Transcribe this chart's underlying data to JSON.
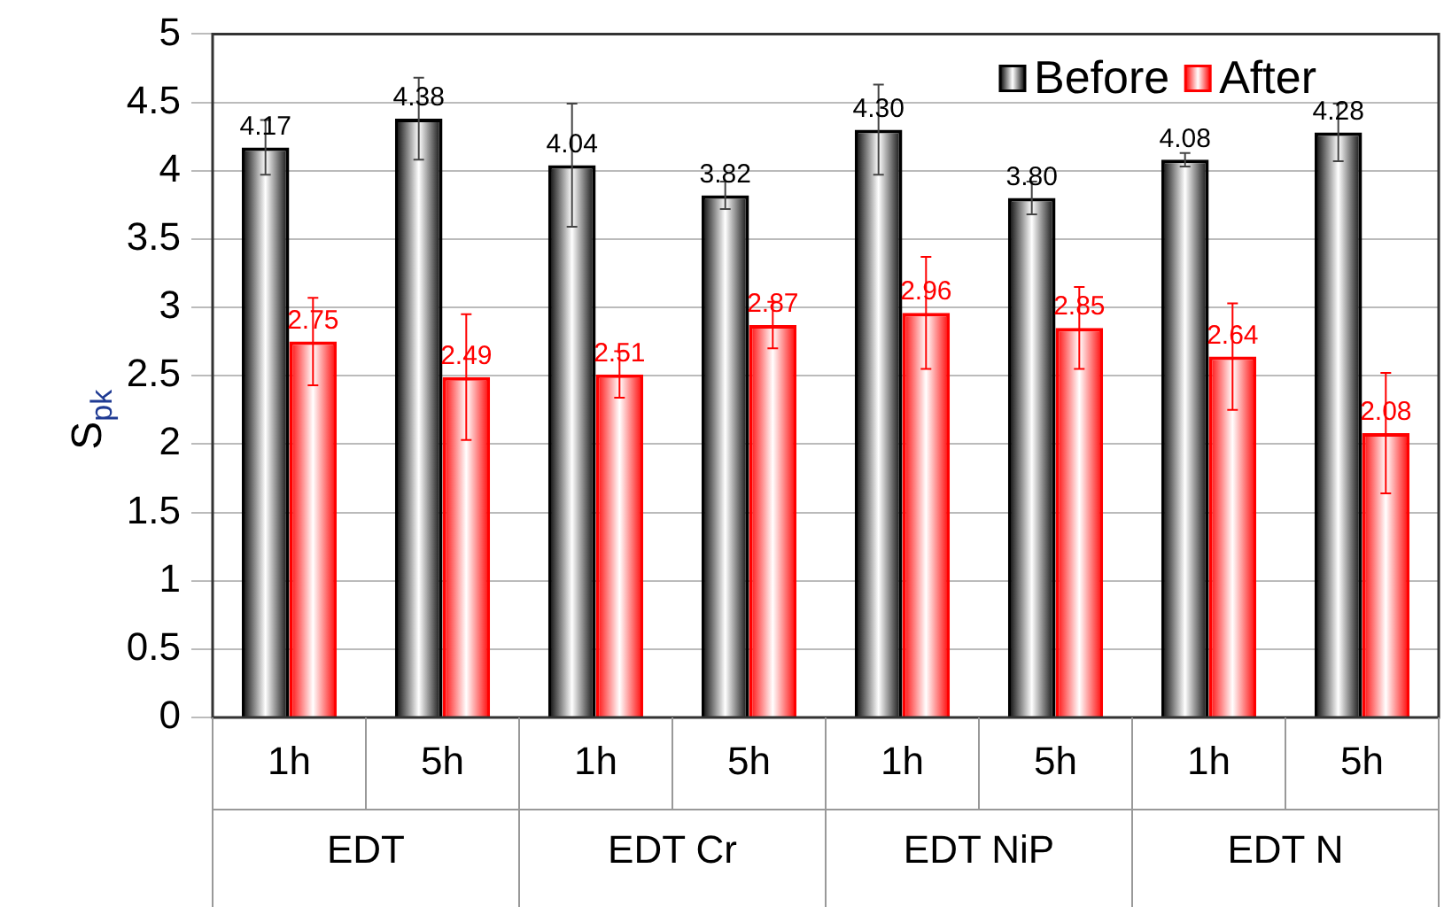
{
  "chart_data": {
    "type": "bar",
    "ylabel": "S$_{pk}$",
    "categories": [
      "1h",
      "5h",
      "1h",
      "5h",
      "1h",
      "5h",
      "1h",
      "5h"
    ],
    "annotations": [
      "EDT",
      "EDT Cr",
      "EDT NiP",
      "EDT N"
    ],
    "series": [
      {
        "name": "Before",
        "color": "#000000",
        "values": [
          4.17,
          4.38,
          4.04,
          3.82,
          4.3,
          3.8,
          4.08,
          4.28
        ],
        "value_labels": [
          "4.17",
          "4.38",
          "4.04",
          "3.82",
          "4.30",
          "3.80",
          "4.08",
          "4.28"
        ],
        "errors": [
          0.2,
          0.3,
          0.45,
          0.1,
          0.33,
          0.12,
          0.05,
          0.21
        ]
      },
      {
        "name": "After",
        "color": "#ff0000",
        "values": [
          2.75,
          2.49,
          2.51,
          2.87,
          2.96,
          2.85,
          2.64,
          2.08
        ],
        "value_labels": [
          "2.75",
          "2.49",
          "2.51",
          "2.87",
          "2.96",
          "2.85",
          "2.64",
          "2.08"
        ],
        "errors": [
          0.32,
          0.46,
          0.17,
          0.17,
          0.41,
          0.3,
          0.39,
          0.44
        ]
      }
    ],
    "ylim": [
      0,
      5
    ],
    "yticks": [
      0,
      0.5,
      1,
      1.5,
      2,
      2.5,
      3,
      3.5,
      4,
      4.5,
      5
    ],
    "grid": "y",
    "legend": "top right"
  }
}
